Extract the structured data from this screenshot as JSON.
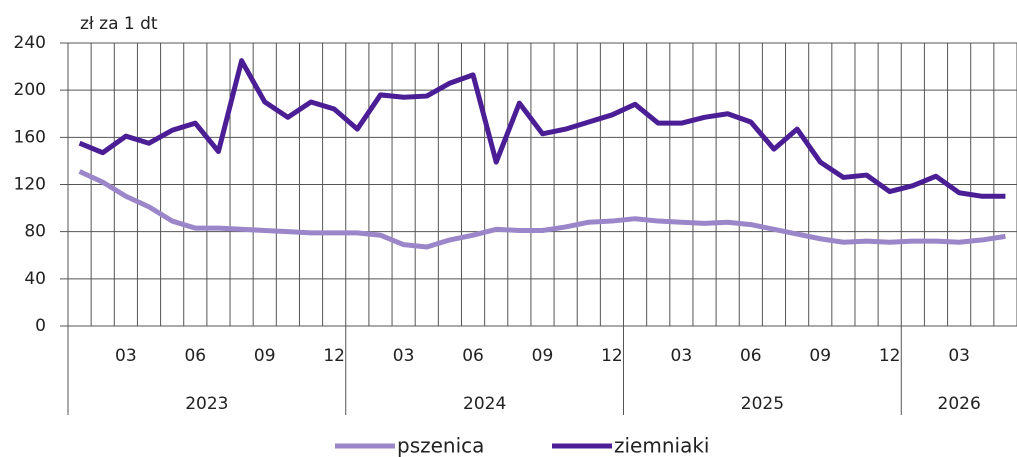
{
  "chart_data": {
    "type": "line",
    "y_label": "zł za 1 dt",
    "categories": [
      null,
      null,
      "03",
      null,
      null,
      "06",
      null,
      null,
      "09",
      null,
      null,
      "12",
      null,
      null,
      "03",
      null,
      null,
      "06",
      null,
      null,
      "09",
      null,
      null,
      "12",
      null,
      null,
      "03",
      null,
      null,
      "06",
      null,
      null,
      "09",
      null,
      null,
      "12",
      null,
      null,
      "03",
      null,
      null
    ],
    "groups": [
      {
        "label": "2023",
        "span": 12
      },
      {
        "label": "2024",
        "span": 12
      },
      {
        "label": "2025",
        "span": 12
      },
      {
        "label": "2026",
        "span": 5
      }
    ],
    "series": [
      {
        "name": "pszenica",
        "color": "#9b86c9",
        "values": [
          131,
          122,
          110,
          101,
          89,
          83,
          83,
          82,
          81,
          80,
          79,
          79,
          79,
          77,
          69,
          67,
          73,
          77,
          82,
          81,
          81,
          84,
          88,
          89,
          91,
          89,
          88,
          87,
          88,
          86,
          82,
          78,
          74,
          71,
          72,
          71,
          72,
          72,
          71,
          73,
          76
        ]
      },
      {
        "name": "ziemniaki",
        "color": "#4b1e96",
        "values": [
          155,
          147,
          161,
          155,
          166,
          172,
          148,
          225,
          190,
          177,
          190,
          184,
          167,
          196,
          194,
          195,
          206,
          213,
          139,
          189,
          163,
          167,
          173,
          179,
          188,
          172,
          172,
          177,
          180,
          173,
          150,
          167,
          139,
          126,
          128,
          114,
          119,
          127,
          113,
          110,
          110
        ]
      }
    ],
    "ylim": [
      0,
      240
    ],
    "yticks": [
      0,
      40,
      80,
      120,
      160,
      200,
      240
    ],
    "grid": true,
    "legend": "bottom"
  }
}
